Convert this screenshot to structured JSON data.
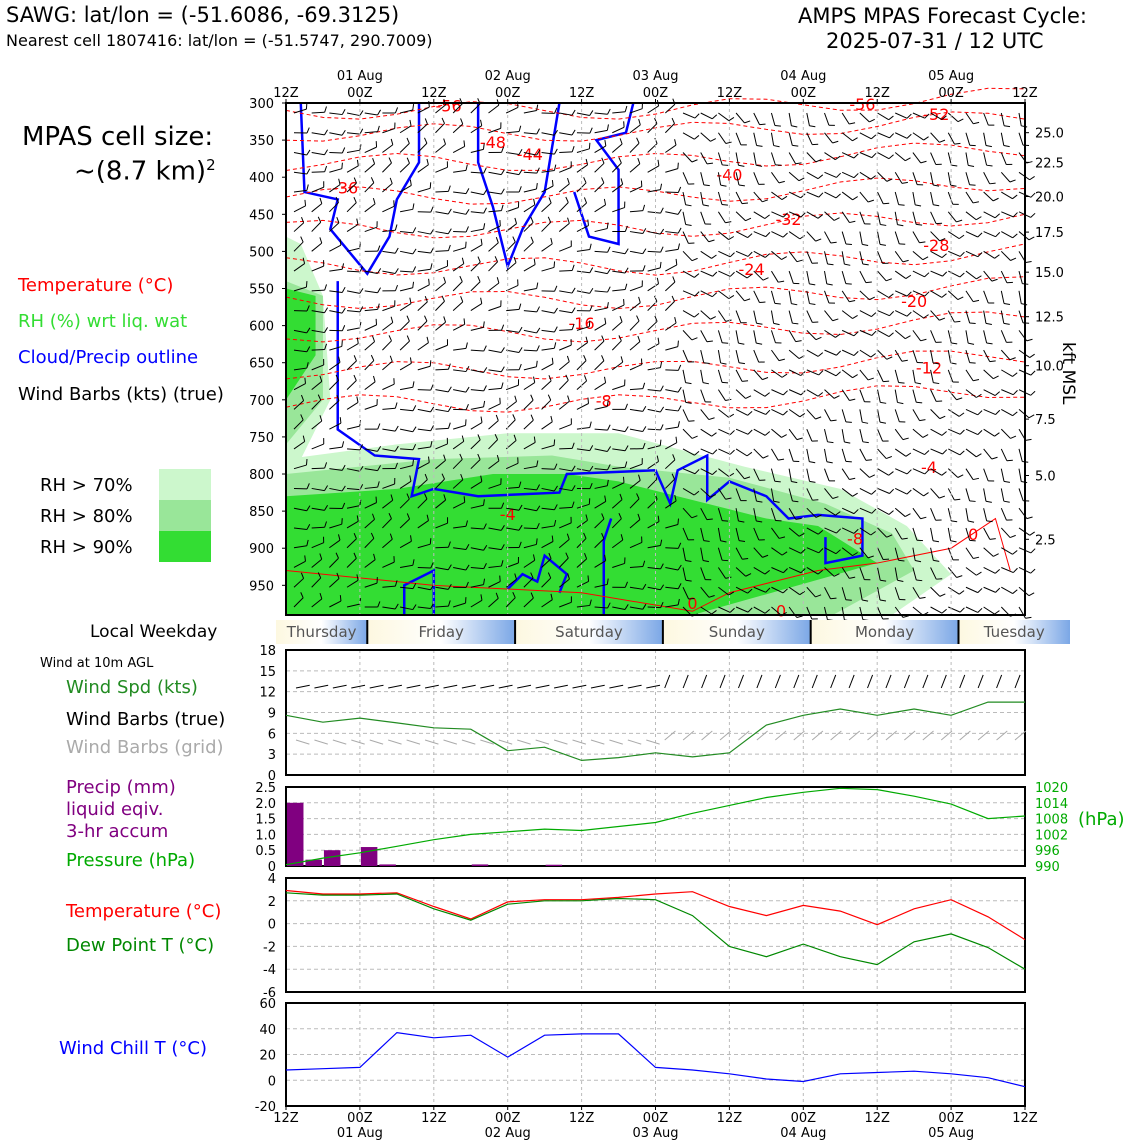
{
  "header": {
    "station": "SAWG: lat/lon = (-51.6086, -69.3125)",
    "nearest": "Nearest cell 1807416: lat/lon = (-51.5747, 290.7009)",
    "cycle_line1": "AMPS MPAS Forecast Cycle:",
    "cycle_line2": "2025-07-31 / 12 UTC"
  },
  "cell_size": {
    "line1": "MPAS cell size:",
    "line2": "~(8.7 km)",
    "sup": "2"
  },
  "legend": {
    "temperature": "Temperature (°C)",
    "rh": "RH (%) wrt liq. wat",
    "cloud": "Cloud/Precip outline",
    "barbs": "Wind Barbs (kts) (true)",
    "rh70": "RH > 70%",
    "rh80": "RH > 80%",
    "rh90": "RH > 90%"
  },
  "colors": {
    "temperature": "#ff0000",
    "rh_label": "#33dd33",
    "cloud": "#0000ff",
    "rh70": "#ccf7cc",
    "rh80": "#99e699",
    "rh90": "#33dd33",
    "pressure": "#00aa00",
    "dewpoint": "#008800",
    "precip": "#800080",
    "windchill": "#0000ff",
    "windspd": "#228B22",
    "grid_barbs": "#aaaaaa",
    "weekday_band": "#7ba7e6"
  },
  "weekday_label": "Local Weekday",
  "weekdays": [
    "Thursday",
    "Friday",
    "Saturday",
    "Sunday",
    "Monday",
    "Tuesday"
  ],
  "wind10m_title": "Wind at 10m AGL",
  "wind_labels": {
    "spd": "Wind Spd (kts)",
    "barbs_true": "Wind Barbs (true)",
    "barbs_grid": "Wind Barbs (grid)"
  },
  "precip_labels": {
    "line1": "Precip (mm)",
    "line2": "liquid eqiv.",
    "line3": "3-hr accum",
    "pressure": "Pressure (hPa)"
  },
  "temp_labels": {
    "temp": "Temperature (°C)",
    "dew": "Dew Point T (°C)"
  },
  "windchill_label": "Wind Chill T (°C)",
  "kft_label": "kft MSL",
  "hpa_unit": "(hPa)",
  "chart_data": [
    {
      "type": "heatmap",
      "name": "vertical profile",
      "x_ticks_top": [
        "12Z",
        "00Z",
        "12Z",
        "00Z",
        "12Z",
        "00Z",
        "12Z",
        "00Z",
        "12Z",
        "00Z",
        "12Z"
      ],
      "x_dates_top": [
        "01 Aug",
        "02 Aug",
        "03 Aug",
        "04 Aug",
        "05 Aug"
      ],
      "y_ticks_hpa": [
        300,
        350,
        400,
        450,
        500,
        550,
        600,
        650,
        700,
        750,
        800,
        850,
        900,
        950
      ],
      "y_range_hpa": [
        990,
        300
      ],
      "kft_ticks": [
        "25.0",
        "22.5",
        "20.0",
        "17.5",
        "15.0",
        "12.5",
        "10.0",
        "7.5",
        "5.0",
        "2.5"
      ],
      "kft_pressure": [
        340,
        380,
        426,
        474,
        528,
        588,
        654,
        726,
        802,
        888
      ],
      "temp_contour_labels": [
        {
          "t": "-56",
          "x": 0.22,
          "p": 305
        },
        {
          "t": "-56",
          "x": 0.78,
          "p": 303
        },
        {
          "t": "-52",
          "x": 0.88,
          "p": 316
        },
        {
          "t": "-48",
          "x": 0.28,
          "p": 354
        },
        {
          "t": "-44",
          "x": 0.33,
          "p": 370
        },
        {
          "t": "-40",
          "x": 0.6,
          "p": 398
        },
        {
          "t": "-36",
          "x": 0.08,
          "p": 415
        },
        {
          "t": "-32",
          "x": 0.68,
          "p": 458
        },
        {
          "t": "-28",
          "x": 0.88,
          "p": 493
        },
        {
          "t": "-24",
          "x": 0.63,
          "p": 525
        },
        {
          "t": "-20",
          "x": 0.85,
          "p": 568
        },
        {
          "t": "-16",
          "x": 0.4,
          "p": 598
        },
        {
          "t": "-12",
          "x": 0.87,
          "p": 658
        },
        {
          "t": "-8",
          "x": 0.43,
          "p": 702
        },
        {
          "t": "-4",
          "x": 0.87,
          "p": 792
        },
        {
          "t": "-4",
          "x": 0.3,
          "p": 855
        },
        {
          "t": "0",
          "x": 0.93,
          "p": 882
        },
        {
          "t": "-8",
          "x": 0.77,
          "p": 888
        },
        {
          "t": "0",
          "x": 0.55,
          "p": 975
        },
        {
          "t": "0",
          "x": 0.67,
          "p": 985
        }
      ]
    },
    {
      "type": "line",
      "name": "wind speed",
      "x_ticks": [
        "12Z",
        "00Z",
        "12Z",
        "00Z",
        "12Z",
        "00Z",
        "12Z",
        "00Z",
        "12Z",
        "00Z",
        "12Z"
      ],
      "ylim": [
        0,
        18
      ],
      "yticks": [
        0,
        3,
        6,
        9,
        12,
        15,
        18
      ],
      "x": [
        0,
        1,
        2,
        3,
        4,
        5,
        6,
        7,
        8,
        9,
        10,
        11,
        12,
        13,
        14,
        15,
        16,
        17,
        18,
        19,
        20
      ],
      "values": [
        8.6,
        7.6,
        8.2,
        7.5,
        6.8,
        6.6,
        3.5,
        4.0,
        2.1,
        2.5,
        3.2,
        2.6,
        3.2,
        7.2,
        8.6,
        9.5,
        8.6,
        9.5,
        8.6,
        10.5,
        10.5
      ]
    },
    {
      "type": "bar",
      "name": "precip",
      "ylim": [
        0,
        2.5
      ],
      "yticks": [
        0,
        0.5,
        1.0,
        1.5,
        2.0,
        2.5
      ],
      "values": [
        2.0,
        0.2,
        0.5,
        0,
        0.6,
        0.05,
        0,
        0,
        0,
        0,
        0.05,
        0,
        0,
        0,
        0.04,
        0,
        0,
        0,
        0,
        0,
        0,
        0,
        0,
        0,
        0,
        0,
        0,
        0,
        0,
        0,
        0,
        0,
        0,
        0,
        0,
        0,
        0,
        0,
        0,
        0
      ]
    },
    {
      "type": "line",
      "name": "pressure",
      "ylim": [
        990,
        1020
      ],
      "yticks": [
        990,
        996,
        1002,
        1008,
        1014,
        1020
      ],
      "x": [
        0,
        2,
        4,
        6,
        8,
        10,
        12,
        14,
        16,
        18,
        20,
        22,
        24,
        26,
        28,
        30,
        32,
        34,
        36,
        38,
        40
      ],
      "values": [
        990.5,
        993,
        995,
        997.5,
        1000,
        1002,
        1003,
        1004,
        1003.5,
        1005,
        1006.5,
        1010,
        1013,
        1016,
        1018,
        1019.5,
        1019,
        1016.5,
        1013.5,
        1008,
        1009
      ]
    },
    {
      "type": "line",
      "name": "temperature and dew point",
      "ylim": [
        -6,
        4
      ],
      "yticks": [
        -6,
        -4,
        -2,
        0,
        2,
        4
      ],
      "x": [
        0,
        2,
        4,
        6,
        8,
        10,
        12,
        14,
        16,
        18,
        20,
        22,
        24,
        26,
        28,
        30,
        32,
        34,
        36,
        38,
        40
      ],
      "series": [
        {
          "name": "Temperature",
          "values": [
            2.9,
            2.6,
            2.6,
            2.7,
            1.5,
            0.4,
            1.9,
            2.1,
            2.1,
            2.3,
            2.6,
            2.8,
            1.5,
            0.7,
            1.6,
            1.1,
            -0.1,
            1.3,
            2.1,
            0.6,
            -1.4
          ]
        },
        {
          "name": "Dew Point",
          "values": [
            2.7,
            2.5,
            2.5,
            2.6,
            1.3,
            0.3,
            1.7,
            2.0,
            2.0,
            2.2,
            2.1,
            0.7,
            -2.0,
            -2.9,
            -1.8,
            -2.9,
            -3.6,
            -1.6,
            -0.9,
            -2.1,
            -4.0
          ]
        }
      ]
    },
    {
      "type": "line",
      "name": "wind chill",
      "ylim": [
        -20,
        60
      ],
      "yticks": [
        -20,
        0,
        20,
        40,
        60
      ],
      "x": [
        0,
        1,
        2,
        3,
        4,
        5,
        6,
        7,
        8,
        9,
        10,
        11,
        12,
        13,
        14,
        15,
        16,
        17,
        18,
        19,
        20
      ],
      "values": [
        8,
        9,
        10,
        37,
        33,
        35,
        18,
        35,
        36,
        36,
        10,
        8,
        5,
        1,
        -1,
        5,
        6,
        7,
        5,
        2,
        -5
      ]
    }
  ],
  "bottom_axis": {
    "ticks": [
      "12Z",
      "00Z",
      "12Z",
      "00Z",
      "12Z",
      "00Z",
      "12Z",
      "00Z",
      "12Z",
      "00Z",
      "12Z"
    ],
    "dates": [
      "01 Aug",
      "02 Aug",
      "03 Aug",
      "04 Aug",
      "05 Aug"
    ]
  }
}
